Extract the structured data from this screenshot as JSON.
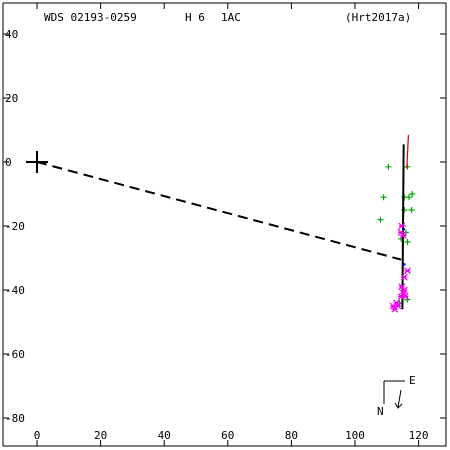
{
  "header": {
    "wds": "WDS 02193-0259",
    "h": "H 6",
    "ac": "1AC",
    "ref": "(Hrt2017a)"
  },
  "compass": {
    "east": "E",
    "north": "N"
  },
  "colors": {
    "axes": "#000000",
    "green_obs": "#00aa00",
    "magenta_obs": "#ee00ee",
    "red_segment": "#cc0000",
    "blue_obs": "#0000cc"
  },
  "chart_data": {
    "type": "scatter",
    "xlim": [
      -10,
      130
    ],
    "ylim": [
      -87,
      50
    ],
    "x_ticks": [
      0,
      20,
      40,
      60,
      80,
      100,
      120
    ],
    "y_ticks": [
      40,
      20,
      0,
      -20,
      -40,
      -60,
      -80
    ],
    "x_tick_labels": [
      "0",
      "20",
      "40",
      "60",
      "80",
      "100",
      "120"
    ],
    "y_tick_labels": [
      "40",
      "20",
      "0",
      "-20",
      "-40",
      "-60",
      "-80"
    ],
    "primary": [
      0,
      0
    ],
    "dashed_line": [
      [
        0,
        0
      ],
      [
        114.5,
        -30.5
      ]
    ],
    "orbit_line": [
      [
        115.3,
        5.5
      ],
      [
        114.9,
        -46
      ]
    ],
    "red_segment": [
      [
        116.8,
        8.5
      ],
      [
        116.3,
        -2
      ]
    ],
    "green_plus": [
      [
        110.5,
        -1.5
      ],
      [
        116.5,
        -1.5
      ],
      [
        109,
        -11
      ],
      [
        115.5,
        -11
      ],
      [
        117,
        -11
      ],
      [
        118,
        -10
      ],
      [
        115.5,
        -15
      ],
      [
        117.8,
        -15
      ],
      [
        108,
        -18
      ],
      [
        115,
        -20
      ],
      [
        116,
        -22
      ],
      [
        114.5,
        -24
      ],
      [
        116.5,
        -25
      ],
      [
        116.5,
        -43
      ],
      [
        114,
        -44
      ]
    ],
    "magenta_x": [
      [
        114.7,
        -20
      ],
      [
        114.5,
        -22
      ],
      [
        115.2,
        -23
      ],
      [
        116.5,
        -34
      ],
      [
        115.5,
        -36
      ],
      [
        114.7,
        -39
      ],
      [
        115.5,
        -40
      ],
      [
        115.2,
        -41
      ],
      [
        114.5,
        -42
      ],
      [
        115.8,
        -42
      ],
      [
        113,
        -44
      ],
      [
        112,
        -45
      ],
      [
        113.5,
        -45
      ],
      [
        112.5,
        -46
      ]
    ],
    "blue_dots": [
      [
        115.3,
        -21
      ],
      [
        115.5,
        -32
      ]
    ]
  }
}
